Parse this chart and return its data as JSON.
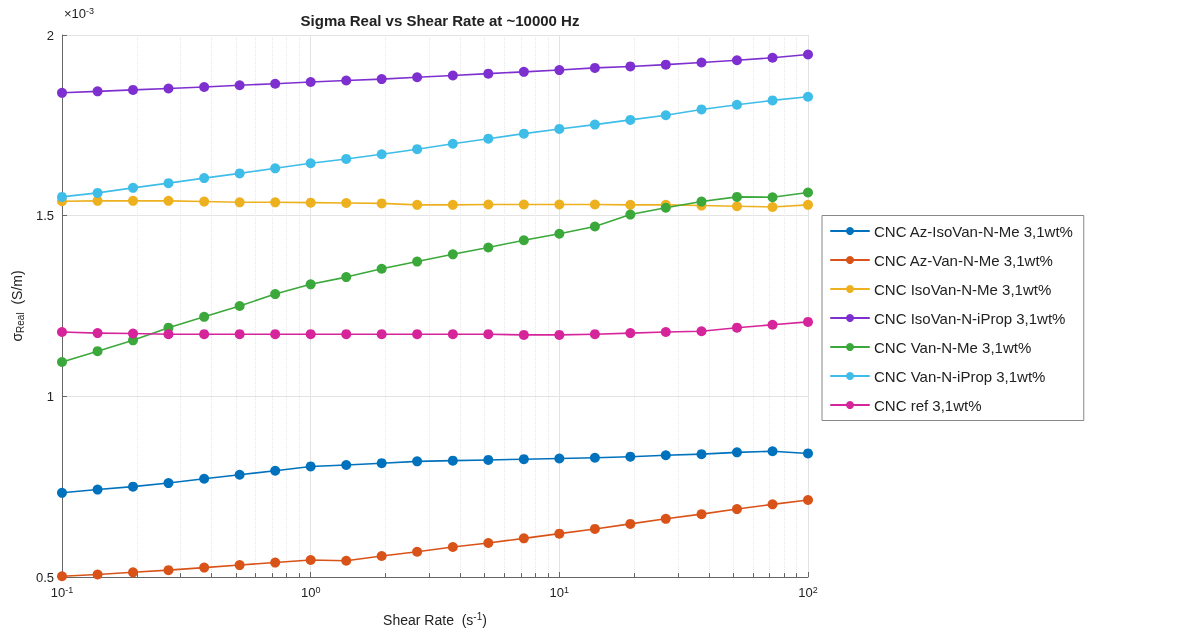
{
  "chart_data": {
    "type": "line",
    "title": "Sigma Real vs Shear Rate at ~10000 Hz",
    "xlabel": "Shear Rate  (s$^{-1}$)",
    "ylabel": "σ$_{Real}$  (S/m)",
    "annotations": [
      "×10$^{-3}$"
    ],
    "x": [
      0.1,
      0.139,
      0.193,
      0.268,
      0.373,
      0.518,
      0.72,
      1,
      1.39,
      1.93,
      2.68,
      3.73,
      5.18,
      7.2,
      10,
      13.9,
      19.3,
      26.8,
      37.3,
      51.8,
      72,
      100
    ],
    "series": [
      {
        "name": "CNC Az-IsoVan-N-Me 3,1wt%",
        "color": "#0072bd",
        "values": [
          0.733,
          0.742,
          0.75,
          0.76,
          0.772,
          0.783,
          0.794,
          0.806,
          0.81,
          0.815,
          0.82,
          0.822,
          0.824,
          0.826,
          0.828,
          0.83,
          0.833,
          0.837,
          0.84,
          0.845,
          0.848,
          0.842
        ]
      },
      {
        "name": "CNC Az-Van-N-Me 3,1wt%",
        "color": "#d95319",
        "values": [
          0.502,
          0.507,
          0.513,
          0.519,
          0.526,
          0.533,
          0.54,
          0.547,
          0.545,
          0.558,
          0.57,
          0.583,
          0.594,
          0.607,
          0.62,
          0.633,
          0.647,
          0.661,
          0.674,
          0.688,
          0.701,
          0.713
        ]
      },
      {
        "name": "CNC IsoVan-N-Me 3,1wt%",
        "color": "#edb120",
        "values": [
          1.54,
          1.541,
          1.541,
          1.541,
          1.539,
          1.537,
          1.537,
          1.536,
          1.535,
          1.534,
          1.53,
          1.53,
          1.531,
          1.531,
          1.531,
          1.531,
          1.53,
          1.53,
          1.528,
          1.526,
          1.524,
          1.53
        ]
      },
      {
        "name": "CNC IsoVan-N-iProp 3,1wt%",
        "color": "#7e2fd0",
        "values": [
          1.84,
          1.844,
          1.848,
          1.852,
          1.856,
          1.861,
          1.865,
          1.87,
          1.874,
          1.878,
          1.883,
          1.888,
          1.893,
          1.898,
          1.903,
          1.909,
          1.913,
          1.918,
          1.924,
          1.93,
          1.937,
          1.946
        ]
      },
      {
        "name": "CNC Van-N-Me 3,1wt%",
        "color": "#3aa83a",
        "values": [
          1.095,
          1.125,
          1.155,
          1.19,
          1.22,
          1.25,
          1.283,
          1.31,
          1.33,
          1.353,
          1.373,
          1.393,
          1.412,
          1.432,
          1.45,
          1.47,
          1.503,
          1.522,
          1.539,
          1.552,
          1.551,
          1.564
        ]
      },
      {
        "name": "CNC Van-N-iProp 3,1wt%",
        "color": "#3dbde8",
        "values": [
          1.552,
          1.563,
          1.577,
          1.59,
          1.604,
          1.617,
          1.631,
          1.645,
          1.657,
          1.67,
          1.684,
          1.699,
          1.713,
          1.727,
          1.74,
          1.752,
          1.765,
          1.778,
          1.794,
          1.807,
          1.819,
          1.829
        ]
      },
      {
        "name": "CNC ref 3,1wt%",
        "color": "#d6249a",
        "values": [
          1.178,
          1.175,
          1.174,
          1.172,
          1.172,
          1.172,
          1.172,
          1.172,
          1.172,
          1.172,
          1.172,
          1.172,
          1.172,
          1.17,
          1.17,
          1.172,
          1.175,
          1.178,
          1.18,
          1.19,
          1.198,
          1.206
        ]
      }
    ],
    "log": "x",
    "xlim": [
      0.1,
      100
    ],
    "xticks": [
      {
        "value": 0.1,
        "label": "10$^{-1}$"
      },
      {
        "value": 1,
        "label": "10$^{0}$"
      },
      {
        "value": 10,
        "label": "10$^{1}$"
      },
      {
        "value": 100,
        "label": "10$^{2}$"
      }
    ],
    "ylim": [
      0.5,
      2
    ],
    "yticks": [
      0.5,
      1,
      1.5,
      2
    ],
    "grid": true,
    "legend": "right",
    "marker": "circle",
    "line_style": "solid"
  }
}
